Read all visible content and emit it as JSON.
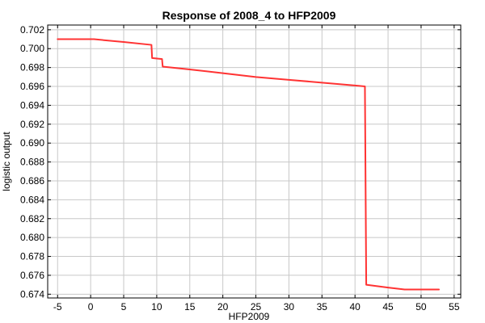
{
  "chart_data": {
    "type": "line",
    "title": "Response of 2008_4 to HFP2009",
    "xlabel": "HFP2009",
    "ylabel": "logistic output",
    "xlim": [
      -6.5,
      56
    ],
    "ylim": [
      0.6736,
      0.7025
    ],
    "xticks": [
      -5,
      0,
      5,
      10,
      15,
      20,
      25,
      30,
      35,
      40,
      45,
      50,
      55
    ],
    "yticks": [
      0.674,
      0.676,
      0.678,
      0.68,
      0.682,
      0.684,
      0.686,
      0.688,
      0.69,
      0.692,
      0.694,
      0.696,
      0.698,
      0.7,
      0.702
    ],
    "grid": true,
    "series": [
      {
        "color": "#ff3333",
        "x": [
          -5,
          0.5,
          5,
          9.2,
          9.3,
          10.8,
          10.9,
          15,
          20,
          25,
          30,
          35,
          40,
          41.5,
          41.7,
          45,
          47.5,
          52.7
        ],
        "y": [
          0.701,
          0.701,
          0.7007,
          0.7004,
          0.699,
          0.6989,
          0.6981,
          0.6978,
          0.6974,
          0.697,
          0.6967,
          0.6964,
          0.6961,
          0.696,
          0.675,
          0.6747,
          0.6745,
          0.6745
        ]
      }
    ]
  }
}
